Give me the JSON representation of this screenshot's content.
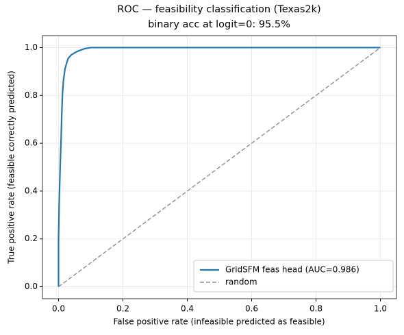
{
  "chart_data": {
    "type": "line",
    "title": "ROC — feasibility classification (Texas2k)",
    "subtitle": "binary acc at logit=0: 95.5%",
    "x_label": "False positive rate (infeasible predicted as feasible)",
    "y_label": "True positive rate (feasible correctly predicted)",
    "series": [
      {
        "name": "GridSFM feas head (AUC=0.986)",
        "color": "#1f77b4",
        "linestyle": "solid",
        "x": [
          0,
          0,
          0.002,
          0.005,
          0.008,
          0.01,
          0.012,
          0.015,
          0.018,
          0.02,
          0.025,
          0.03,
          0.04,
          0.05,
          0.06,
          0.08,
          0.1,
          1
        ],
        "values": [
          0,
          0.2,
          0.35,
          0.5,
          0.62,
          0.72,
          0.8,
          0.86,
          0.89,
          0.91,
          0.935,
          0.955,
          0.97,
          0.978,
          0.985,
          0.995,
          1,
          1
        ]
      },
      {
        "name": "random",
        "color": "#949494",
        "linestyle": "dashed",
        "x": [
          0,
          1
        ],
        "values": [
          0,
          1
        ]
      }
    ],
    "xlim": [
      -0.05,
      1.05
    ],
    "ylim": [
      -0.05,
      1.05
    ],
    "xticks": [
      {
        "value": 0,
        "label": "0.0"
      },
      0.2,
      0.4,
      0.6,
      0.8,
      {
        "value": 1,
        "label": "1.0"
      }
    ],
    "yticks": [
      {
        "value": 0,
        "label": "0.0"
      },
      0.2,
      0.4,
      0.6,
      0.8,
      {
        "value": 1,
        "label": "1.0"
      }
    ],
    "grid": true,
    "legend": "lower right"
  }
}
